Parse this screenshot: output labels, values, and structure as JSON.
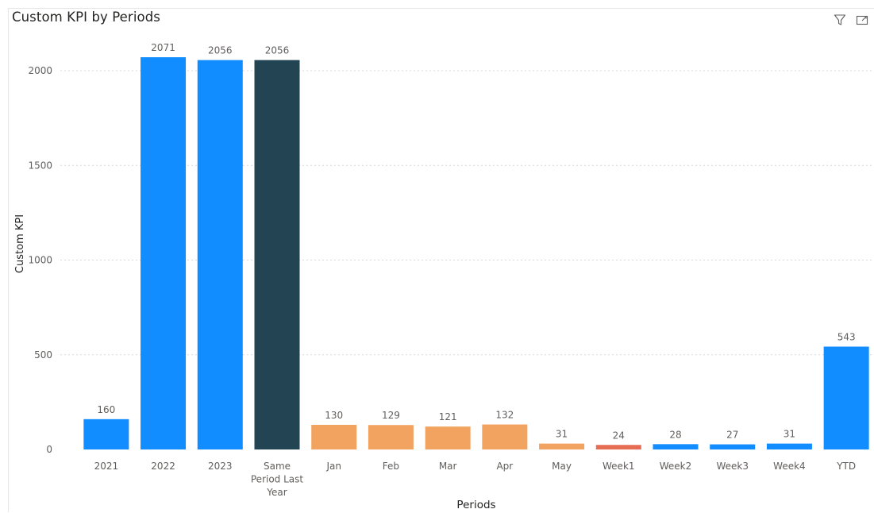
{
  "title": "Custom KPI by Periods",
  "icons": {
    "filter": "filter-icon",
    "focus": "focus-mode-icon"
  },
  "colors": {
    "blue": "#118dff",
    "dark": "#234452",
    "orange": "#f2a35f",
    "red": "#e66c55",
    "grid": "#d9d9d9",
    "text": "#605e5c"
  },
  "chart_data": {
    "type": "bar",
    "title": "Custom KPI by Periods",
    "xlabel": "Periods",
    "ylabel": "Custom KPI",
    "ylim": [
      0,
      2150
    ],
    "yticks": [
      0,
      500,
      1000,
      1500,
      2000
    ],
    "grid": true,
    "categories": [
      "2021",
      "2022",
      "2023",
      "Same Period Last Year",
      "Jan",
      "Feb",
      "Mar",
      "Apr",
      "May",
      "Week1",
      "Week2",
      "Week3",
      "Week4",
      "YTD"
    ],
    "category_lines": [
      [
        "2021"
      ],
      [
        "2022"
      ],
      [
        "2023"
      ],
      [
        "Same",
        "Period Last",
        "Year"
      ],
      [
        "Jan"
      ],
      [
        "Feb"
      ],
      [
        "Mar"
      ],
      [
        "Apr"
      ],
      [
        "May"
      ],
      [
        "Week1"
      ],
      [
        "Week2"
      ],
      [
        "Week3"
      ],
      [
        "Week4"
      ],
      [
        "YTD"
      ]
    ],
    "values": [
      160,
      2071,
      2056,
      2056,
      130,
      129,
      121,
      132,
      31,
      24,
      28,
      27,
      31,
      543
    ],
    "bar_colors": [
      "#118dff",
      "#118dff",
      "#118dff",
      "#234452",
      "#f2a35f",
      "#f2a35f",
      "#f2a35f",
      "#f2a35f",
      "#f2a35f",
      "#e66c55",
      "#118dff",
      "#118dff",
      "#118dff",
      "#118dff"
    ]
  }
}
